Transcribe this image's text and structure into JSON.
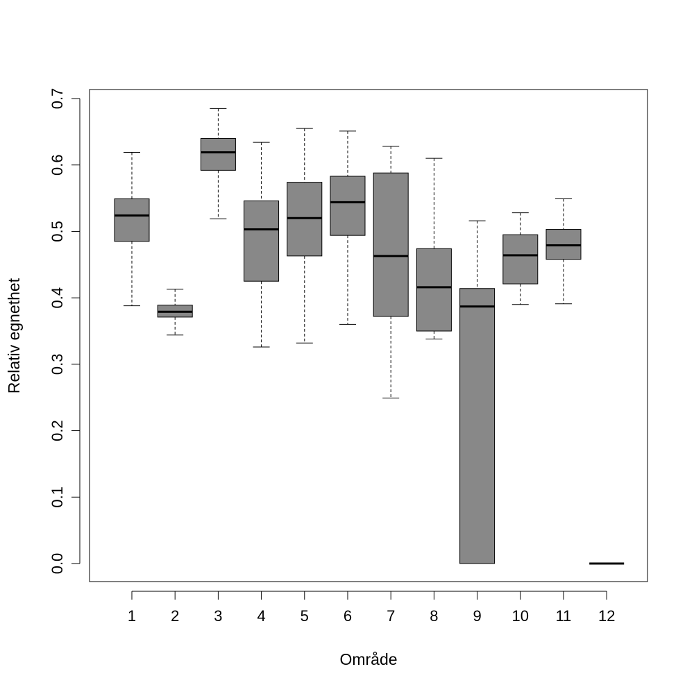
{
  "chart_data": {
    "type": "boxplot",
    "xlabel": "Område",
    "ylabel": "Relativ egnethet",
    "ylim": [
      0,
      0.7
    ],
    "yticks": [
      "0.0",
      "0.1",
      "0.2",
      "0.3",
      "0.4",
      "0.5",
      "0.6",
      "0.7"
    ],
    "categories": [
      "1",
      "2",
      "3",
      "4",
      "5",
      "6",
      "7",
      "8",
      "9",
      "10",
      "11",
      "12"
    ],
    "box_color": "#888888",
    "boxes": [
      {
        "category": "1",
        "whisker_low": 0.388,
        "q1": 0.485,
        "median": 0.524,
        "q3": 0.549,
        "whisker_high": 0.619
      },
      {
        "category": "2",
        "whisker_low": 0.344,
        "q1": 0.371,
        "median": 0.379,
        "q3": 0.389,
        "whisker_high": 0.413
      },
      {
        "category": "3",
        "whisker_low": 0.519,
        "q1": 0.592,
        "median": 0.619,
        "q3": 0.64,
        "whisker_high": 0.685
      },
      {
        "category": "4",
        "whisker_low": 0.326,
        "q1": 0.425,
        "median": 0.503,
        "q3": 0.546,
        "whisker_high": 0.634
      },
      {
        "category": "5",
        "whisker_low": 0.332,
        "q1": 0.463,
        "median": 0.52,
        "q3": 0.574,
        "whisker_high": 0.655
      },
      {
        "category": "6",
        "whisker_low": 0.36,
        "q1": 0.494,
        "median": 0.544,
        "q3": 0.583,
        "whisker_high": 0.651
      },
      {
        "category": "7",
        "whisker_low": 0.249,
        "q1": 0.372,
        "median": 0.463,
        "q3": 0.588,
        "whisker_high": 0.628
      },
      {
        "category": "8",
        "whisker_low": 0.338,
        "q1": 0.35,
        "median": 0.416,
        "q3": 0.474,
        "whisker_high": 0.61
      },
      {
        "category": "9",
        "whisker_low": 0.0,
        "q1": 0.0,
        "median": 0.387,
        "q3": 0.414,
        "whisker_high": 0.516
      },
      {
        "category": "10",
        "whisker_low": 0.39,
        "q1": 0.421,
        "median": 0.464,
        "q3": 0.495,
        "whisker_high": 0.528
      },
      {
        "category": "11",
        "whisker_low": 0.391,
        "q1": 0.458,
        "median": 0.479,
        "q3": 0.503,
        "whisker_high": 0.549
      },
      {
        "category": "12",
        "whisker_low": 0.0,
        "q1": 0.0,
        "median": 0.0,
        "q3": 0.0,
        "whisker_high": 0.0
      }
    ]
  }
}
